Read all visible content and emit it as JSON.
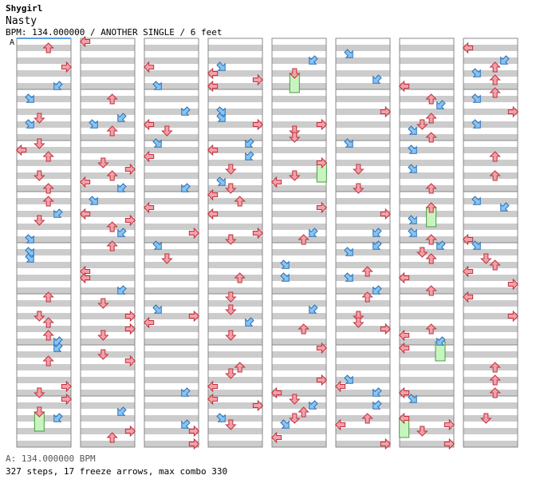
{
  "song": {
    "artist": "Shygirl",
    "title": "Nasty",
    "meta": "BPM: 134.000000 / ANOTHER SINGLE / 6 feet"
  },
  "chart": {
    "marker_label": "A",
    "colors": {
      "band": "#cccccc",
      "red_arrow": "#f4a0a8",
      "red_outline": "#c0303c",
      "blue_arrow": "#86c4f4",
      "blue_outline": "#2c70b8",
      "freeze": "#c8f4c0",
      "freeze_outline": "#4a9a44",
      "marker_bar": "#5a9fe0"
    },
    "columns": 8,
    "measures_per_column": 8,
    "steps_per_measure": 8
  },
  "footer": {
    "bpm_line": "A: 134.000000 BPM",
    "stats_line": "327 steps, 17 freeze arrows, max combo 330"
  }
}
